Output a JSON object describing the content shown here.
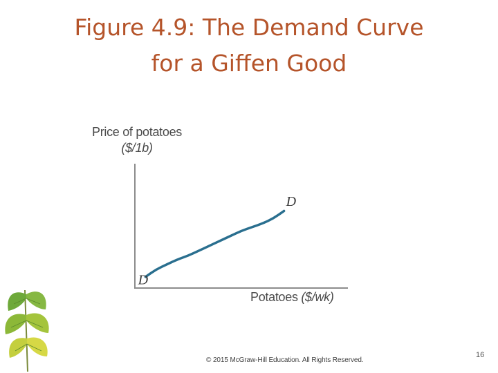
{
  "slide": {
    "title_line1": "Figure 4.9: The Demand Curve",
    "title_line2": "for a Giffen Good",
    "footer": "© 2015 McGraw-Hill Education. All Rights Reserved.",
    "page_number": "16",
    "title_color": "#b5542a"
  },
  "chart_data": {
    "type": "line",
    "ylabel": "Price of potatoes",
    "ylabel_unit": "($/1b)",
    "xlabel": "Potatoes",
    "xlabel_unit": "($/wk)",
    "xlim": [
      0,
      10
    ],
    "ylim": [
      0,
      10
    ],
    "grid": false,
    "ticks": false,
    "series": [
      {
        "color": "#2a6f8f",
        "x": [
          0.5,
          1.0,
          1.5,
          2.0,
          2.5,
          3.0,
          3.5,
          4.0,
          4.5,
          5.0,
          5.5,
          6.0,
          6.5,
          7.0
        ],
        "y": [
          0.9,
          1.5,
          1.9,
          2.3,
          2.6,
          3.0,
          3.4,
          3.8,
          4.2,
          4.6,
          4.9,
          5.2,
          5.6,
          6.2
        ]
      }
    ],
    "annotations": [
      {
        "text": "D",
        "x": 0.15,
        "y": 0.3
      },
      {
        "text": "D",
        "x": 7.1,
        "y": 6.6
      }
    ]
  }
}
